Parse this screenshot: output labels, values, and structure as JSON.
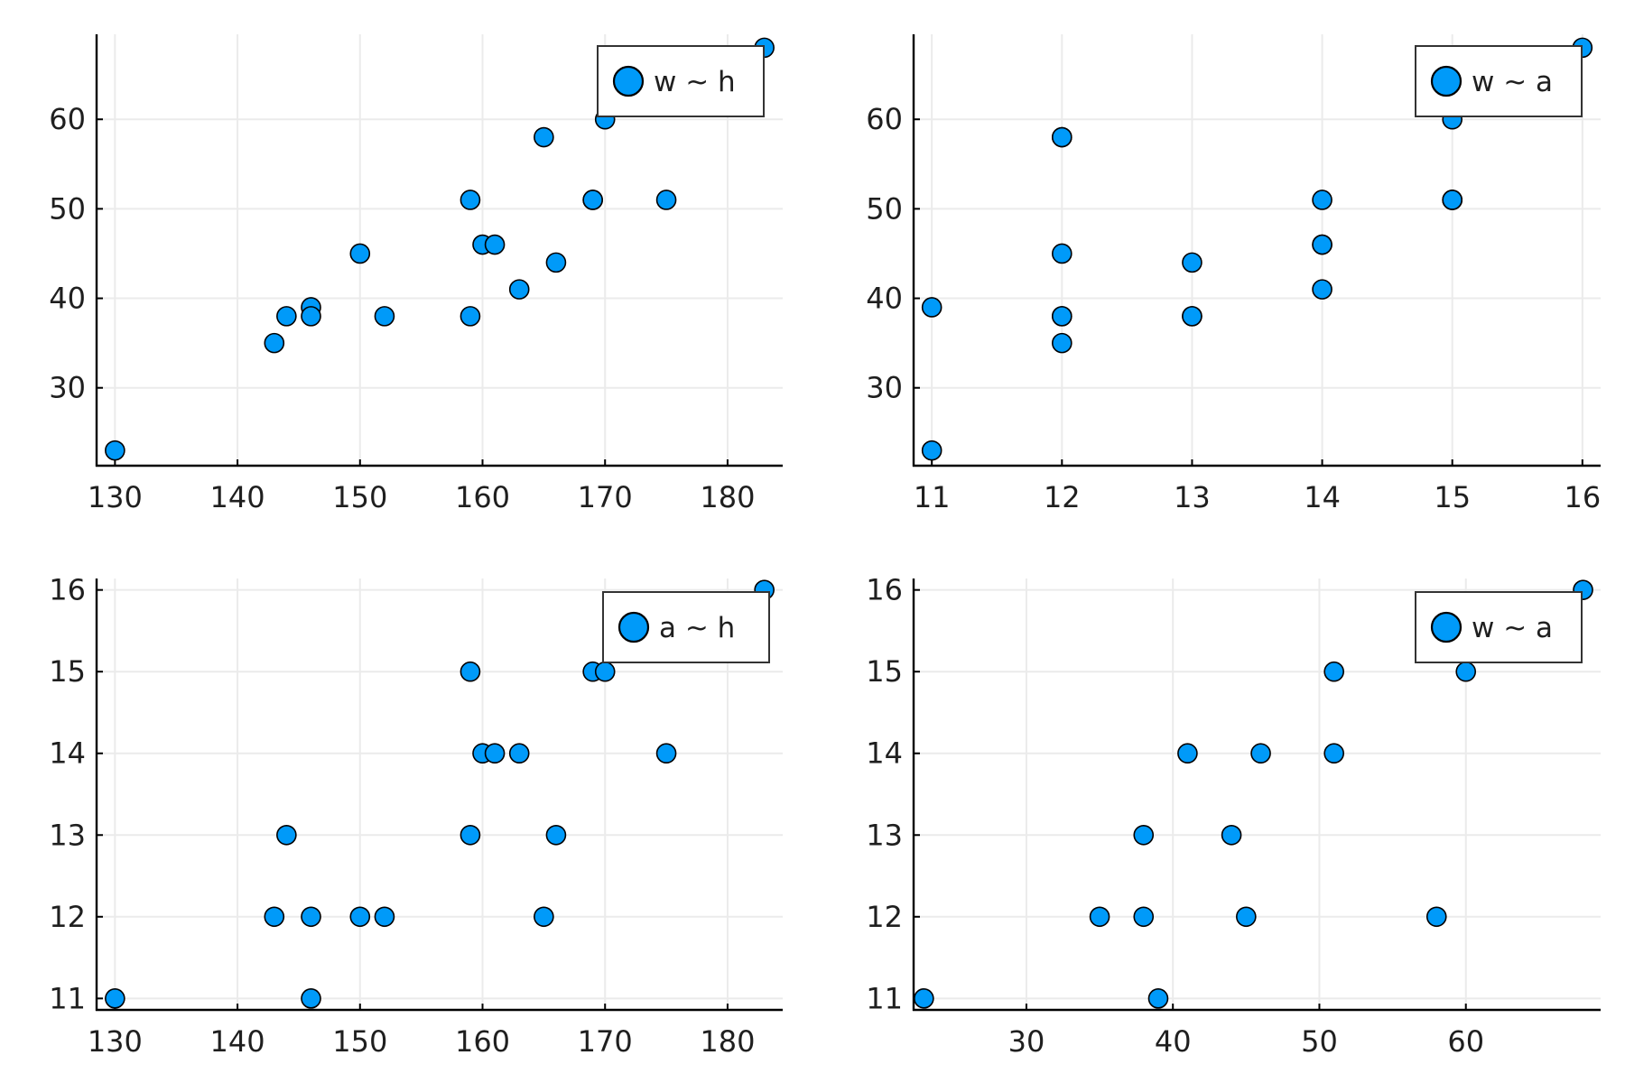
{
  "chart_data": [
    {
      "type": "scatter",
      "xlim": [
        128.5,
        184.5
      ],
      "ylim": [
        21.3,
        69.5
      ],
      "xticks": [
        130,
        140,
        150,
        160,
        170,
        180
      ],
      "yticks": [
        30,
        40,
        50,
        60
      ],
      "grid": true,
      "legend_position": "top-right",
      "series": [
        {
          "name": "w ~ h",
          "color": "#009af9",
          "x": [
            130,
            143,
            144,
            146,
            146,
            150,
            152,
            159,
            159,
            160,
            161,
            163,
            165,
            166,
            169,
            169,
            170,
            175,
            183
          ],
          "y": [
            23,
            35,
            38,
            39,
            38,
            45,
            38,
            51,
            38,
            46,
            46,
            41,
            58,
            44,
            51,
            51,
            60,
            51,
            68
          ]
        }
      ]
    },
    {
      "type": "scatter",
      "xlim": [
        10.86,
        16.14
      ],
      "ylim": [
        21.3,
        69.5
      ],
      "xticks": [
        11,
        12,
        13,
        14,
        15,
        16
      ],
      "yticks": [
        30,
        40,
        50,
        60
      ],
      "grid": true,
      "legend_position": "top-right",
      "series": [
        {
          "name": "w ~ a",
          "color": "#009af9",
          "x": [
            11,
            12,
            12,
            12,
            13,
            12,
            12,
            15,
            13,
            14,
            14,
            14,
            12,
            13,
            15,
            15,
            15,
            14,
            16,
            11
          ],
          "y": [
            23,
            35,
            38,
            45,
            38,
            58,
            38,
            51,
            38,
            46,
            46,
            41,
            58,
            44,
            51,
            51,
            60,
            51,
            68,
            39
          ]
        }
      ]
    },
    {
      "type": "scatter",
      "xlim": [
        128.5,
        184.5
      ],
      "ylim": [
        10.86,
        16.14
      ],
      "xticks": [
        130,
        140,
        150,
        160,
        170,
        180
      ],
      "yticks": [
        11,
        12,
        13,
        14,
        15,
        16
      ],
      "grid": true,
      "legend_position": "top-right",
      "series": [
        {
          "name": "a ~ h",
          "color": "#009af9",
          "x": [
            130,
            143,
            144,
            146,
            146,
            150,
            152,
            159,
            159,
            160,
            161,
            163,
            165,
            166,
            169,
            170,
            175,
            183
          ],
          "y": [
            11,
            12,
            13,
            12,
            11,
            12,
            12,
            15,
            13,
            14,
            14,
            14,
            12,
            13,
            15,
            15,
            14,
            16
          ]
        }
      ]
    },
    {
      "type": "scatter",
      "xlim": [
        22.3,
        69.2
      ],
      "ylim": [
        10.86,
        16.14
      ],
      "xticks": [
        30,
        40,
        50,
        60
      ],
      "yticks": [
        11,
        12,
        13,
        14,
        15,
        16
      ],
      "grid": true,
      "legend_position": "top-right",
      "series": [
        {
          "name": "w ~ a",
          "color": "#009af9",
          "x": [
            23,
            35,
            38,
            38,
            39,
            41,
            44,
            45,
            46,
            51,
            51,
            58,
            60,
            68
          ],
          "y": [
            11,
            12,
            12,
            13,
            11,
            14,
            13,
            12,
            14,
            15,
            14,
            12,
            15,
            16
          ]
        }
      ]
    }
  ]
}
